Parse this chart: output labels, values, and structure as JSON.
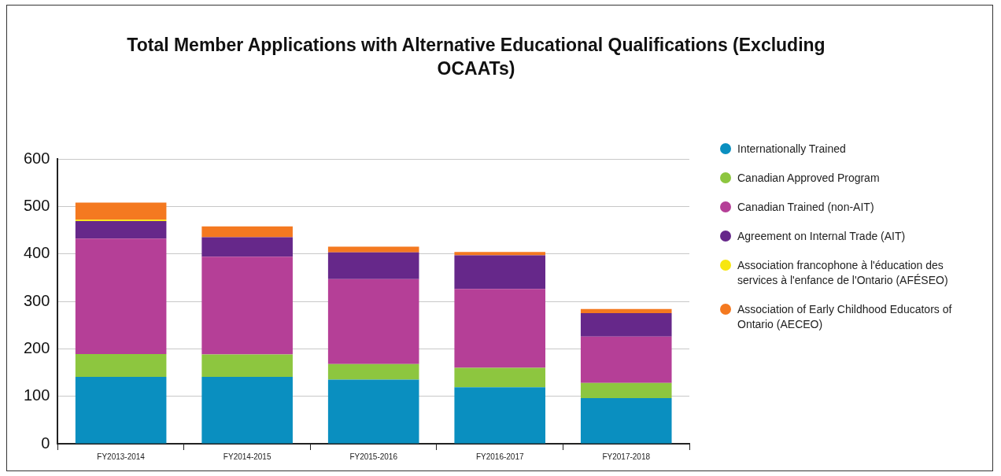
{
  "chart_data": {
    "type": "bar",
    "title": "Total Member Applications with Alternative Educational Qualifications (Excluding OCAATs)",
    "categories": [
      "FY2013-2014",
      "FY2014-2015",
      "FY2015-2016",
      "FY2016-2017",
      "FY2017-2018"
    ],
    "series": [
      {
        "name": "Internationally Trained",
        "color": "#0a8fc0",
        "values": [
          141,
          141,
          135,
          119,
          96
        ]
      },
      {
        "name": "Canadian Approved Program",
        "color": "#8dc63f",
        "values": [
          48,
          47,
          33,
          41,
          32
        ]
      },
      {
        "name": "Canadian Trained (non-AIT)",
        "color": "#b53f97",
        "values": [
          243,
          206,
          179,
          166,
          98
        ]
      },
      {
        "name": "Agreement on Internal Trade (AIT)",
        "color": "#66288a",
        "values": [
          37,
          41,
          56,
          71,
          49
        ]
      },
      {
        "name": "Association francophone à l'éducation des services à l'enfance de l'Ontario (AFÉSEO)",
        "color": "#f7e60f",
        "values": [
          3,
          0,
          0,
          0,
          0
        ]
      },
      {
        "name": "Association of Early Childhood Educators of Ontario (AECEO)",
        "color": "#f47920",
        "values": [
          36,
          23,
          12,
          7,
          9
        ]
      }
    ],
    "stacked": true,
    "ylim": [
      0,
      600
    ],
    "yticks": [
      0,
      100,
      200,
      300,
      400,
      500,
      600
    ],
    "grid": "y",
    "legend": "right"
  }
}
